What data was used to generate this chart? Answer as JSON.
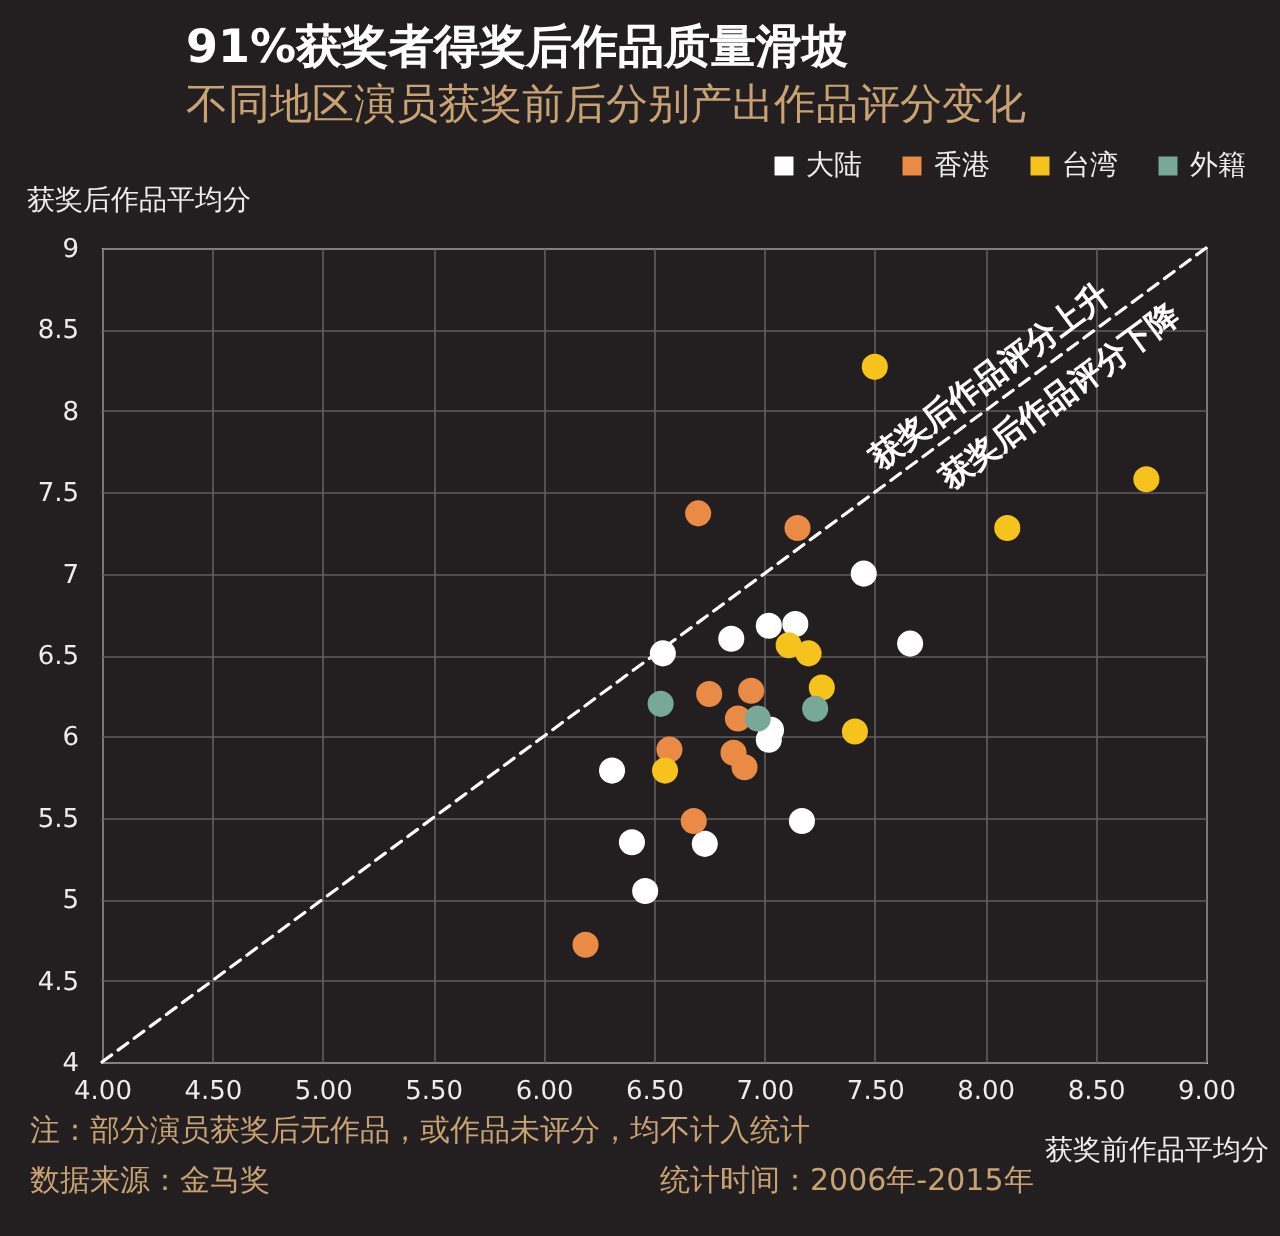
{
  "chart_data": {
    "type": "scatter",
    "title": "91%获奖者得奖后作品质量滑坡",
    "subtitle": "不同地区演员获奖前后分别产出作品评分变化",
    "xlabel": "获奖前作品平均分",
    "ylabel": "获奖后作品平均分",
    "xlim": [
      4,
      9
    ],
    "xticks": [
      {
        "value": 4,
        "label": "4.00"
      },
      {
        "value": 4.5,
        "label": "4.50"
      },
      {
        "value": 5,
        "label": "5.00"
      },
      {
        "value": 5.5,
        "label": "5.50"
      },
      {
        "value": 6,
        "label": "6.00"
      },
      {
        "value": 6.5,
        "label": "6.50"
      },
      {
        "value": 7,
        "label": "7.00"
      },
      {
        "value": 7.5,
        "label": "7.50"
      },
      {
        "value": 8,
        "label": "8.00"
      },
      {
        "value": 8.5,
        "label": "8.50"
      },
      {
        "value": 9,
        "label": "9.00"
      }
    ],
    "ylim": [
      4,
      9
    ],
    "yticks": [
      4,
      4.5,
      5,
      5.5,
      6,
      6.5,
      7,
      7.5,
      8,
      8.5,
      9
    ],
    "grid": true,
    "legend": "top right",
    "marker": "circle",
    "series": [
      {
        "name": "大陆",
        "color": "#ffffff",
        "x": [
          7.45,
          7.02,
          7.14,
          6.85,
          7.66,
          6.54,
          7.03,
          7.02,
          6.31,
          7.17,
          6.4,
          6.73,
          6.46
        ],
        "values": [
          7.0,
          6.68,
          6.69,
          6.6,
          6.57,
          6.51,
          6.04,
          5.98,
          5.79,
          5.48,
          5.35,
          5.34,
          5.05
        ]
      },
      {
        "name": "香港",
        "color": "#e98a45",
        "x": [
          6.7,
          7.15,
          6.75,
          6.94,
          6.88,
          6.57,
          6.86,
          6.91,
          6.68,
          6.19
        ],
        "values": [
          7.37,
          7.28,
          6.26,
          6.28,
          6.11,
          5.92,
          5.9,
          5.81,
          5.48,
          4.72
        ]
      },
      {
        "name": "台湾",
        "color": "#f6c21c",
        "x": [
          7.5,
          8.73,
          8.1,
          7.11,
          7.2,
          7.26,
          7.41,
          6.55
        ],
        "values": [
          8.27,
          7.58,
          7.28,
          6.56,
          6.51,
          6.3,
          6.03,
          5.79
        ]
      },
      {
        "name": "外籍",
        "color": "#78a898",
        "x": [
          6.53,
          6.97,
          7.23
        ],
        "values": [
          6.2,
          6.11,
          6.17
        ]
      },
      {
        "type": "line",
        "color": "#ffffff",
        "line_style": "dashed",
        "marker": "none",
        "x": [
          4,
          9
        ],
        "values": [
          4,
          9
        ]
      }
    ],
    "annotations": [
      "获奖后作品评分上升",
      "获奖后作品评分下降",
      "注：部分演员获奖后无作品，或作品未评分，均不计入统计",
      "数据来源：金马奖",
      "统计时间：2006年-2015年"
    ]
  }
}
